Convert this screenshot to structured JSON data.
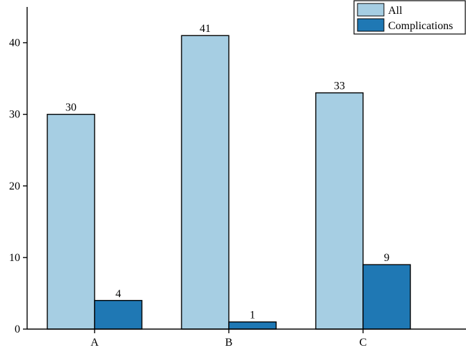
{
  "chart_data": {
    "type": "bar",
    "title": "",
    "xlabel": "",
    "ylabel": "",
    "categories": [
      "A",
      "B",
      "C"
    ],
    "series": [
      {
        "name": "All",
        "values": [
          30,
          41,
          33
        ],
        "color": "#a6cee3"
      },
      {
        "name": "Complications",
        "values": [
          4,
          1,
          9
        ],
        "color": "#1f78b4"
      }
    ],
    "ylim": [
      0,
      45
    ],
    "yticks": [
      0,
      10,
      20,
      30,
      40
    ],
    "grid": false,
    "legend_position": "top-right",
    "data_labels": true
  }
}
